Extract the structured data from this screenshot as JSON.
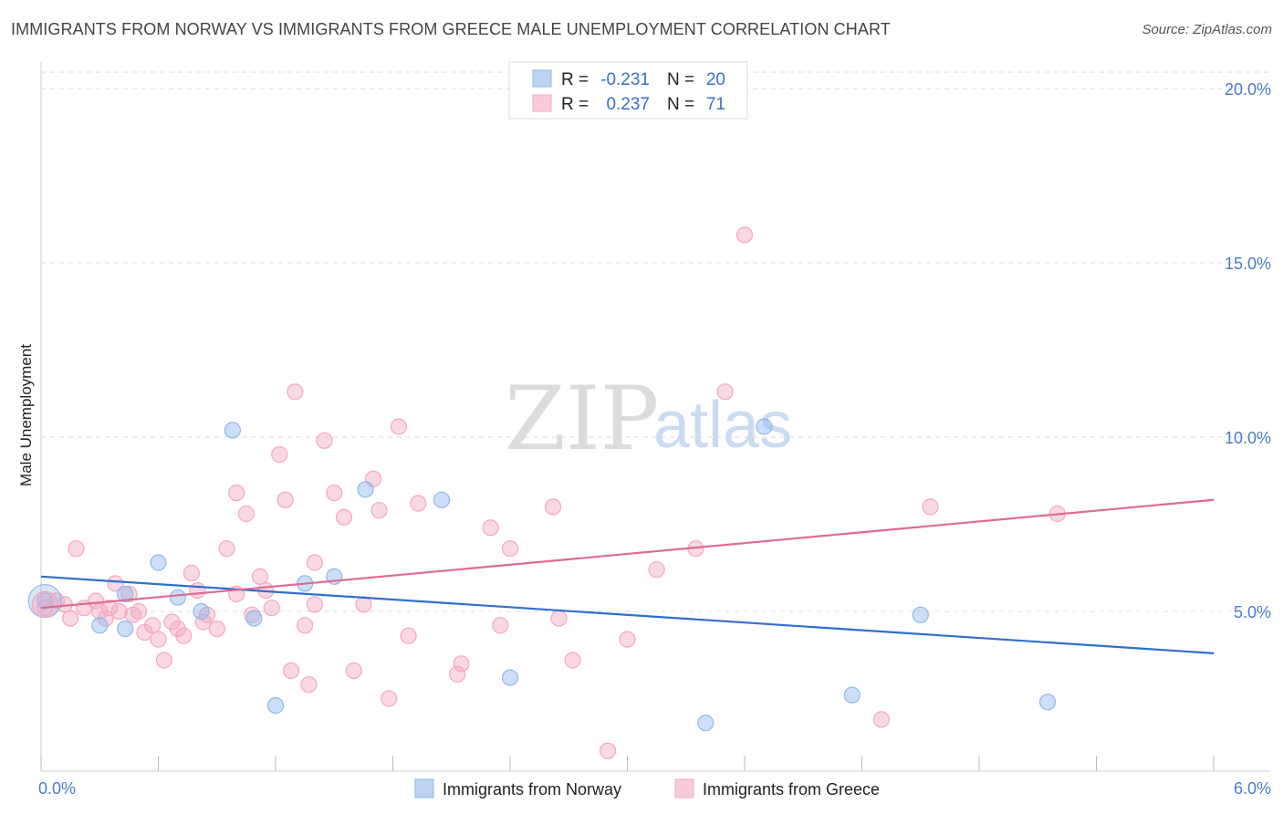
{
  "title": "IMMIGRANTS FROM NORWAY VS IMMIGRANTS FROM GREECE MALE UNEMPLOYMENT CORRELATION CHART",
  "source": "Source: ZipAtlas.com",
  "watermark": {
    "zip": "ZIP",
    "atlas": "atlas"
  },
  "chart_data": {
    "type": "scatter",
    "title": "IMMIGRANTS FROM NORWAY VS IMMIGRANTS FROM GREECE MALE UNEMPLOYMENT CORRELATION CHART",
    "xlabel": "",
    "ylabel": "Male Unemployment",
    "xlim": [
      0,
      6
    ],
    "ylim": [
      0,
      20.5
    ],
    "x_ticks": [
      0,
      6
    ],
    "x_tick_labels": [
      "0.0%",
      "6.0%"
    ],
    "y_ticks": [
      5,
      10,
      15,
      20
    ],
    "y_tick_labels": [
      "5.0%",
      "10.0%",
      "15.0%",
      "20.0%"
    ],
    "grid": true,
    "legend_position": "top-center",
    "series": [
      {
        "name": "Immigrants from Norway",
        "color": "#8fb8ea",
        "line_color": "#2f6fce",
        "R": "-0.231",
        "N": "20",
        "trend": {
          "x0": 0,
          "y0": 6.0,
          "x1": 6,
          "y1": 3.8
        },
        "points": [
          [
            0.02,
            5.3
          ],
          [
            0.3,
            4.6
          ],
          [
            0.43,
            4.5
          ],
          [
            0.43,
            5.5
          ],
          [
            0.6,
            6.4
          ],
          [
            0.7,
            5.4
          ],
          [
            0.82,
            5.0
          ],
          [
            0.98,
            10.2
          ],
          [
            1.09,
            4.8
          ],
          [
            1.2,
            2.3
          ],
          [
            1.35,
            5.8
          ],
          [
            1.5,
            6.0
          ],
          [
            1.66,
            8.5
          ],
          [
            2.05,
            8.2
          ],
          [
            2.4,
            3.1
          ],
          [
            3.4,
            1.8
          ],
          [
            3.7,
            10.3
          ],
          [
            4.15,
            2.6
          ],
          [
            4.5,
            4.9
          ],
          [
            5.15,
            2.4
          ]
        ]
      },
      {
        "name": "Immigrants from Greece",
        "color": "#f4a8c0",
        "line_color": "#e06a95",
        "R": "0.237",
        "N": "71",
        "trend": {
          "x0": 0,
          "y0": 5.1,
          "x1": 6,
          "y1": 8.2
        },
        "points": [
          [
            0.02,
            5.1
          ],
          [
            0.08,
            5.3
          ],
          [
            0.12,
            5.2
          ],
          [
            0.15,
            4.8
          ],
          [
            0.18,
            6.8
          ],
          [
            0.22,
            5.1
          ],
          [
            0.28,
            5.3
          ],
          [
            0.33,
            4.8
          ],
          [
            0.35,
            5.1
          ],
          [
            0.38,
            5.8
          ],
          [
            0.4,
            5.0
          ],
          [
            0.45,
            5.5
          ],
          [
            0.47,
            4.9
          ],
          [
            0.5,
            5.0
          ],
          [
            0.53,
            4.4
          ],
          [
            0.57,
            4.6
          ],
          [
            0.6,
            4.2
          ],
          [
            0.63,
            3.6
          ],
          [
            0.67,
            4.7
          ],
          [
            0.7,
            4.5
          ],
          [
            0.73,
            4.3
          ],
          [
            0.77,
            6.1
          ],
          [
            0.8,
            5.6
          ],
          [
            0.83,
            4.7
          ],
          [
            0.85,
            4.9
          ],
          [
            0.9,
            4.5
          ],
          [
            0.95,
            6.8
          ],
          [
            1.0,
            8.4
          ],
          [
            1.05,
            7.8
          ],
          [
            1.08,
            4.9
          ],
          [
            1.12,
            6.0
          ],
          [
            1.15,
            5.6
          ],
          [
            1.18,
            5.1
          ],
          [
            1.22,
            9.5
          ],
          [
            1.25,
            8.2
          ],
          [
            1.28,
            3.3
          ],
          [
            1.3,
            11.3
          ],
          [
            1.35,
            4.6
          ],
          [
            1.37,
            2.9
          ],
          [
            1.4,
            6.4
          ],
          [
            1.45,
            9.9
          ],
          [
            1.5,
            8.4
          ],
          [
            1.55,
            7.7
          ],
          [
            1.6,
            3.3
          ],
          [
            1.65,
            5.2
          ],
          [
            1.7,
            8.8
          ],
          [
            1.73,
            7.9
          ],
          [
            1.78,
            2.5
          ],
          [
            1.83,
            10.3
          ],
          [
            1.88,
            4.3
          ],
          [
            1.93,
            8.1
          ],
          [
            2.13,
            3.2
          ],
          [
            2.15,
            3.5
          ],
          [
            2.3,
            7.4
          ],
          [
            2.35,
            4.6
          ],
          [
            2.4,
            6.8
          ],
          [
            2.62,
            8.0
          ],
          [
            2.65,
            4.8
          ],
          [
            2.72,
            3.6
          ],
          [
            2.9,
            1.0
          ],
          [
            3.0,
            4.2
          ],
          [
            3.15,
            6.2
          ],
          [
            3.35,
            6.8
          ],
          [
            3.5,
            11.3
          ],
          [
            3.6,
            15.8
          ],
          [
            4.3,
            1.9
          ],
          [
            4.55,
            8.0
          ],
          [
            5.2,
            7.8
          ],
          [
            1.0,
            5.5
          ],
          [
            1.4,
            5.2
          ],
          [
            0.3,
            5.0
          ]
        ]
      }
    ]
  },
  "legend": {
    "r_label": "R =",
    "n_label": "N ="
  }
}
